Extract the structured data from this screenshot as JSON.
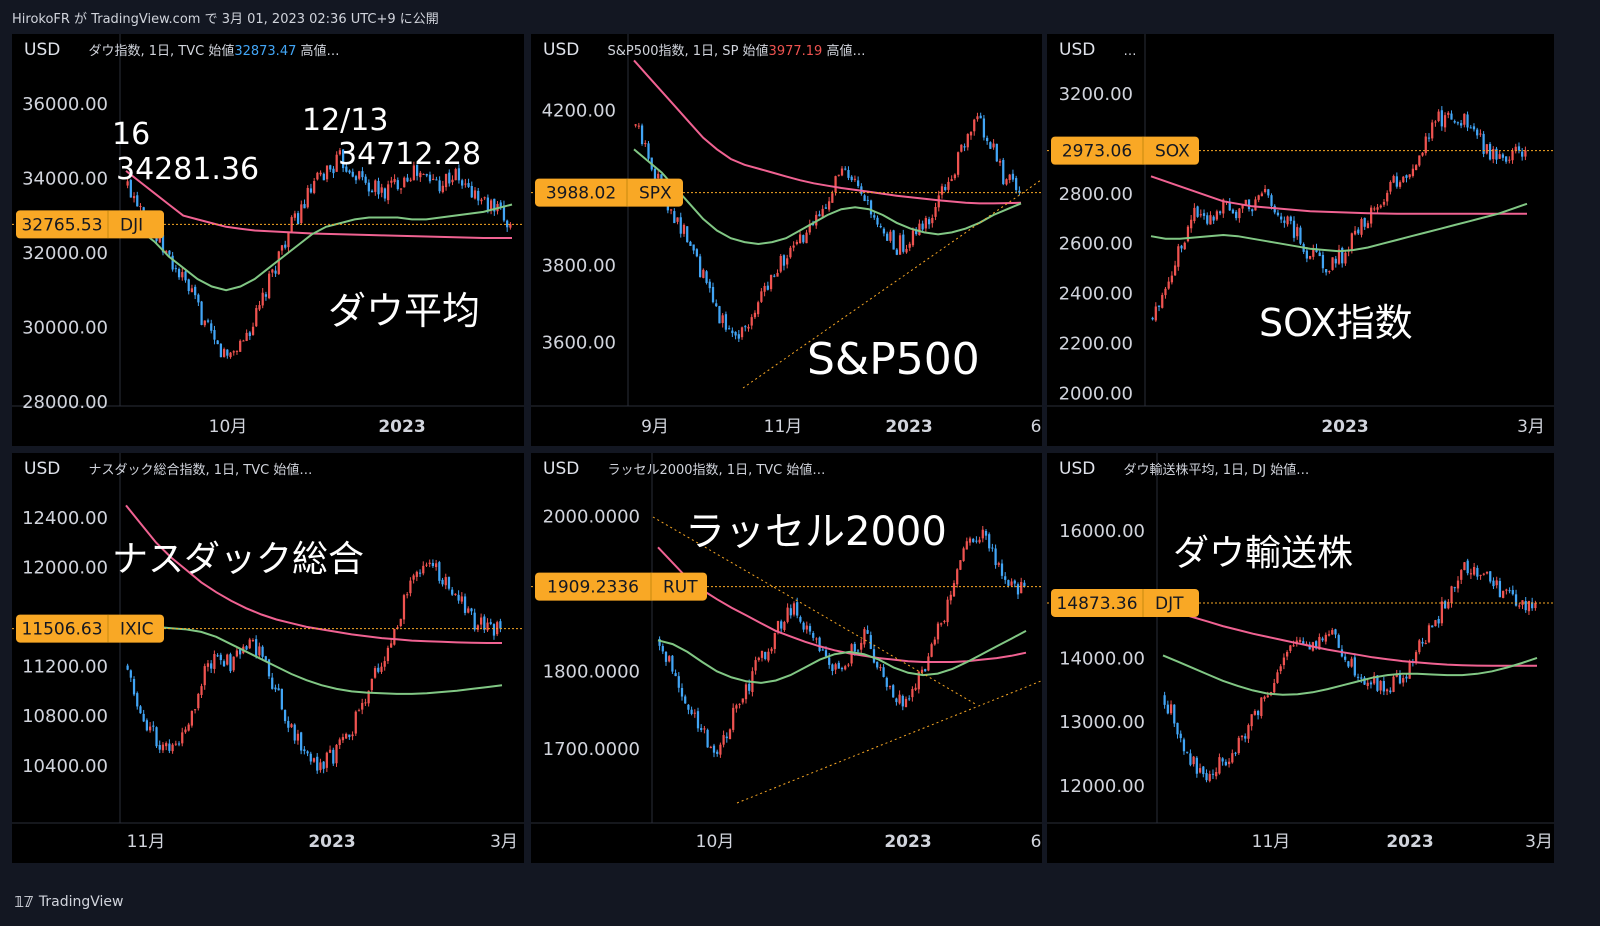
{
  "header": {
    "text": "HirokoFR が TradingView.com で 3月 01, 2023 02:36 UTC+9 に公開"
  },
  "footer": {
    "brand": "TradingView",
    "logo": "tradingview-logo-icon"
  },
  "colors": {
    "up": "#ef5350",
    "down": "#42a5f5",
    "ma_pink": "#f06292",
    "ma_green": "#81c784",
    "price_line": "#f9a825",
    "label_bg": "#f9a825",
    "grid": "#2a2e39"
  },
  "panels": [
    {
      "id": "dji",
      "currency": "USD",
      "legend": "ダウ指数, 1日, TVC  始値",
      "open_label": "32873.47",
      "open_color": "blue",
      "legend_tail": "  高値…",
      "y_ticks": [
        "36000.00",
        "34000.00",
        "32000.00",
        "30000.00",
        "28000.00"
      ],
      "x_ticks": [
        "10月",
        "2023"
      ],
      "price": {
        "value": "32765.53",
        "symbol": "DJI"
      },
      "annotations": [
        {
          "text": "ダウ平均"
        },
        {
          "text": "12/13"
        },
        {
          "text": "34712.28"
        },
        {
          "text": "16"
        },
        {
          "text": "34281.36"
        }
      ]
    },
    {
      "id": "spx",
      "currency": "USD",
      "legend": "S&P500指数, 1日, SP  始値",
      "open_label": "3977.19",
      "open_color": "red",
      "legend_tail": "  高値…",
      "y_ticks": [
        "4200.00",
        "3800.00",
        "3600.00"
      ],
      "x_ticks": [
        "9月",
        "11月",
        "2023",
        "6"
      ],
      "price": {
        "value": "3988.02",
        "symbol": "SPX"
      },
      "annotations": [
        {
          "text": "S&P500"
        }
      ]
    },
    {
      "id": "sox",
      "currency": "USD",
      "legend": "…",
      "open_label": "",
      "open_color": "blue",
      "legend_tail": "",
      "y_ticks": [
        "3200.00",
        "2800.00",
        "2600.00",
        "2400.00",
        "2200.00",
        "2000.00"
      ],
      "x_ticks": [
        "2023",
        "3月"
      ],
      "price": {
        "value": "2973.06",
        "symbol": "SOX"
      },
      "annotations": [
        {
          "text": "SOX指数"
        }
      ]
    },
    {
      "id": "ixic",
      "currency": "USD",
      "legend": "ナスダック総合指数, 1日, TVC  始値…",
      "open_label": "",
      "open_color": "blue",
      "legend_tail": "",
      "y_ticks": [
        "12400.00",
        "12000.00",
        "11200.00",
        "10800.00",
        "10400.00"
      ],
      "x_ticks": [
        "11月",
        "2023",
        "3月"
      ],
      "price": {
        "value": "11506.63",
        "symbol": "IXIC"
      },
      "annotations": [
        {
          "text": "ナスダック総合"
        }
      ]
    },
    {
      "id": "rut",
      "currency": "USD",
      "legend": "ラッセル2000指数, 1日, TVC  始値…",
      "open_label": "",
      "open_color": "blue",
      "legend_tail": "",
      "y_ticks": [
        "2000.0000",
        "1800.0000",
        "1700.0000"
      ],
      "x_ticks": [
        "10月",
        "2023",
        "6"
      ],
      "price": {
        "value": "1909.2336",
        "symbol": "RUT"
      },
      "annotations": [
        {
          "text": "ラッセル2000"
        }
      ]
    },
    {
      "id": "djt",
      "currency": "USD",
      "legend": "ダウ輸送株平均, 1日, DJ  始値…",
      "open_label": "",
      "open_color": "blue",
      "legend_tail": "",
      "y_ticks": [
        "16000.00",
        "14000.00",
        "13000.00",
        "12000.00"
      ],
      "x_ticks": [
        "11月",
        "2023",
        "3月"
      ],
      "price": {
        "value": "14873.36",
        "symbol": "DJT"
      },
      "annotations": [
        {
          "text": "ダウ輸送株"
        }
      ]
    }
  ],
  "chart_data": [
    {
      "type": "candlestick",
      "name": "DJI",
      "ylim": [
        28000,
        36800
      ],
      "last": 32765.53,
      "open": 32873.47,
      "close_path": [
        33800,
        33300,
        32400,
        31800,
        31200,
        30500,
        29600,
        29200,
        29600,
        30200,
        31200,
        32300,
        33000,
        33700,
        34200,
        34500,
        34200,
        33800,
        33600,
        33900,
        34200,
        34000,
        33900,
        34100,
        33700,
        33400,
        33100,
        32765
      ],
      "ma200": [
        34200,
        33900,
        33600,
        33300,
        33000,
        32900,
        32800,
        32700,
        32650,
        32600,
        32580,
        32560,
        32540,
        32520,
        32510,
        32500,
        32490,
        32480,
        32470,
        32460,
        32450,
        32440,
        32430,
        32420,
        32410,
        32400,
        32400,
        32400
      ],
      "ma50": [
        32900,
        32600,
        32300,
        31900,
        31600,
        31300,
        31100,
        31000,
        31100,
        31300,
        31600,
        31900,
        32200,
        32500,
        32700,
        32800,
        32900,
        32950,
        32950,
        32950,
        32900,
        32900,
        32950,
        33000,
        33050,
        33100,
        33200,
        33300
      ]
    },
    {
      "type": "candlestick",
      "name": "SPX",
      "ylim": [
        3480,
        4300
      ],
      "last": 3988.02,
      "open": 3977.19,
      "close_path": [
        4160,
        4080,
        3990,
        3920,
        3850,
        3760,
        3680,
        3620,
        3640,
        3700,
        3790,
        3820,
        3860,
        3900,
        3980,
        4040,
        4000,
        3940,
        3880,
        3850,
        3860,
        3900,
        3960,
        4030,
        4110,
        4180,
        4100,
        4020,
        3988
      ],
      "ma200": [
        4330,
        4290,
        4250,
        4210,
        4170,
        4130,
        4100,
        4075,
        4060,
        4050,
        4040,
        4030,
        4020,
        4012,
        4006,
        4000,
        3995,
        3990,
        3985,
        3980,
        3976,
        3972,
        3968,
        3965,
        3962,
        3960,
        3960,
        3961,
        3962
      ],
      "ma50": [
        4100,
        4070,
        4040,
        4000,
        3960,
        3920,
        3890,
        3870,
        3860,
        3855,
        3860,
        3870,
        3890,
        3910,
        3930,
        3945,
        3950,
        3945,
        3930,
        3910,
        3895,
        3885,
        3880,
        3885,
        3895,
        3910,
        3930,
        3945,
        3960
      ]
    },
    {
      "type": "candlestick",
      "name": "SOX",
      "ylim": [
        1990,
        3280
      ],
      "last": 2973.06,
      "open": null,
      "close_path": [
        2300,
        2450,
        2600,
        2750,
        2700,
        2780,
        2720,
        2760,
        2800,
        2700,
        2640,
        2560,
        2520,
        2540,
        2620,
        2700,
        2780,
        2850,
        2900,
        3000,
        3100,
        3120,
        3080,
        3000,
        2950,
        2960,
        2973
      ],
      "ma200": [
        2870,
        2850,
        2830,
        2810,
        2790,
        2770,
        2760,
        2750,
        2745,
        2740,
        2735,
        2730,
        2728,
        2726,
        2724,
        2722,
        2721,
        2720,
        2720,
        2720,
        2720,
        2720,
        2720,
        2720,
        2720,
        2720,
        2720
      ],
      "ma50": [
        2630,
        2620,
        2620,
        2625,
        2630,
        2635,
        2630,
        2620,
        2610,
        2600,
        2590,
        2580,
        2575,
        2570,
        2575,
        2585,
        2600,
        2615,
        2630,
        2645,
        2660,
        2675,
        2690,
        2705,
        2720,
        2740,
        2760
      ]
    },
    {
      "type": "candlestick",
      "name": "IXIC",
      "ylim": [
        10100,
        12600
      ],
      "last": 11506.63,
      "open": null,
      "close_path": [
        11200,
        10800,
        10600,
        10500,
        10700,
        11100,
        11300,
        11200,
        11400,
        11300,
        11000,
        10700,
        10500,
        10400,
        10500,
        10700,
        11000,
        11200,
        11500,
        11900,
        12100,
        11900,
        11800,
        11600,
        11500,
        11506
      ],
      "ma200": [
        12500,
        12350,
        12200,
        12080,
        11980,
        11880,
        11800,
        11730,
        11670,
        11620,
        11580,
        11550,
        11520,
        11500,
        11480,
        11460,
        11445,
        11430,
        11420,
        11410,
        11405,
        11400,
        11395,
        11392,
        11390,
        11390
      ],
      "ma50": [
        11520,
        11520,
        11520,
        11510,
        11500,
        11480,
        11440,
        11380,
        11320,
        11260,
        11200,
        11140,
        11090,
        11050,
        11020,
        11000,
        10990,
        10985,
        10980,
        10980,
        10985,
        10995,
        11005,
        11020,
        11035,
        11050
      ]
    },
    {
      "type": "candlestick",
      "name": "RUT",
      "ylim": [
        1630,
        2030
      ],
      "last": 1909.2336,
      "open": null,
      "close_path": [
        1840,
        1800,
        1760,
        1720,
        1690,
        1740,
        1780,
        1820,
        1850,
        1880,
        1860,
        1830,
        1800,
        1820,
        1850,
        1800,
        1770,
        1760,
        1800,
        1850,
        1900,
        1960,
        1980,
        1940,
        1910,
        1909
      ],
      "ma200": [
        1960,
        1940,
        1920,
        1905,
        1893,
        1882,
        1872,
        1862,
        1852,
        1845,
        1838,
        1832,
        1827,
        1823,
        1820,
        1817,
        1815,
        1813,
        1812,
        1812,
        1812,
        1813,
        1815,
        1817,
        1820,
        1824
      ],
      "ma50": [
        1840,
        1835,
        1825,
        1812,
        1800,
        1792,
        1787,
        1785,
        1788,
        1795,
        1805,
        1815,
        1822,
        1825,
        1822,
        1815,
        1805,
        1798,
        1795,
        1797,
        1803,
        1812,
        1822,
        1832,
        1842,
        1852
      ]
    },
    {
      "type": "candlestick",
      "name": "DJT",
      "ylim": [
        11700,
        16600
      ],
      "last": 14873.36,
      "open": null,
      "close_path": [
        13400,
        12800,
        12300,
        12100,
        12400,
        12700,
        13100,
        13500,
        13900,
        14300,
        14200,
        14400,
        14100,
        13800,
        13600,
        13500,
        13700,
        14100,
        14500,
        14900,
        15500,
        15400,
        15200,
        15000,
        14800,
        14873
      ],
      "ma200": [
        14800,
        14720,
        14650,
        14580,
        14510,
        14450,
        14390,
        14340,
        14290,
        14240,
        14190,
        14140,
        14100,
        14060,
        14020,
        13990,
        13960,
        13940,
        13920,
        13905,
        13895,
        13890,
        13888,
        13887,
        13887,
        13888
      ],
      "ma50": [
        14050,
        13950,
        13850,
        13750,
        13650,
        13570,
        13500,
        13450,
        13430,
        13440,
        13470,
        13520,
        13580,
        13640,
        13700,
        13740,
        13760,
        13760,
        13750,
        13740,
        13740,
        13760,
        13800,
        13860,
        13930,
        14010
      ]
    }
  ]
}
